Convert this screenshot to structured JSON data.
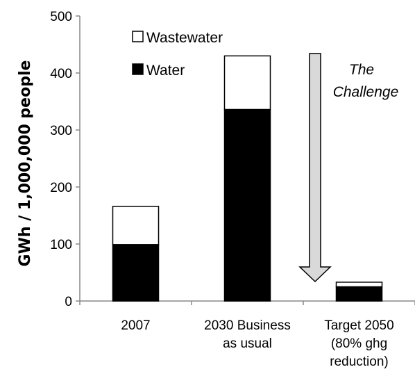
{
  "chart_data": {
    "type": "bar",
    "stacked": true,
    "categories": [
      [
        "2007"
      ],
      [
        "2030 Business",
        "as usual"
      ],
      [
        "Target 2050",
        "(80% ghg",
        "reduction)"
      ]
    ],
    "series": [
      {
        "name": "Water",
        "values": [
          99,
          336,
          25
        ],
        "color": "#000000"
      },
      {
        "name": "Wastewater",
        "values": [
          67,
          94,
          8
        ],
        "color": "#ffffff"
      }
    ],
    "title": "",
    "xlabel": "",
    "ylabel": "GWh / 1,000,000 people",
    "ylim": [
      0,
      500
    ],
    "yticks": [
      "0",
      "100",
      "200",
      "300",
      "400",
      "500"
    ],
    "grid": false,
    "legend": {
      "placement": "top-left",
      "order": [
        "Wastewater",
        "Water"
      ]
    },
    "annotation": {
      "lines": [
        "The",
        "Challenge"
      ],
      "arrow": "down",
      "arrow_color": "#d9d9d9"
    }
  }
}
